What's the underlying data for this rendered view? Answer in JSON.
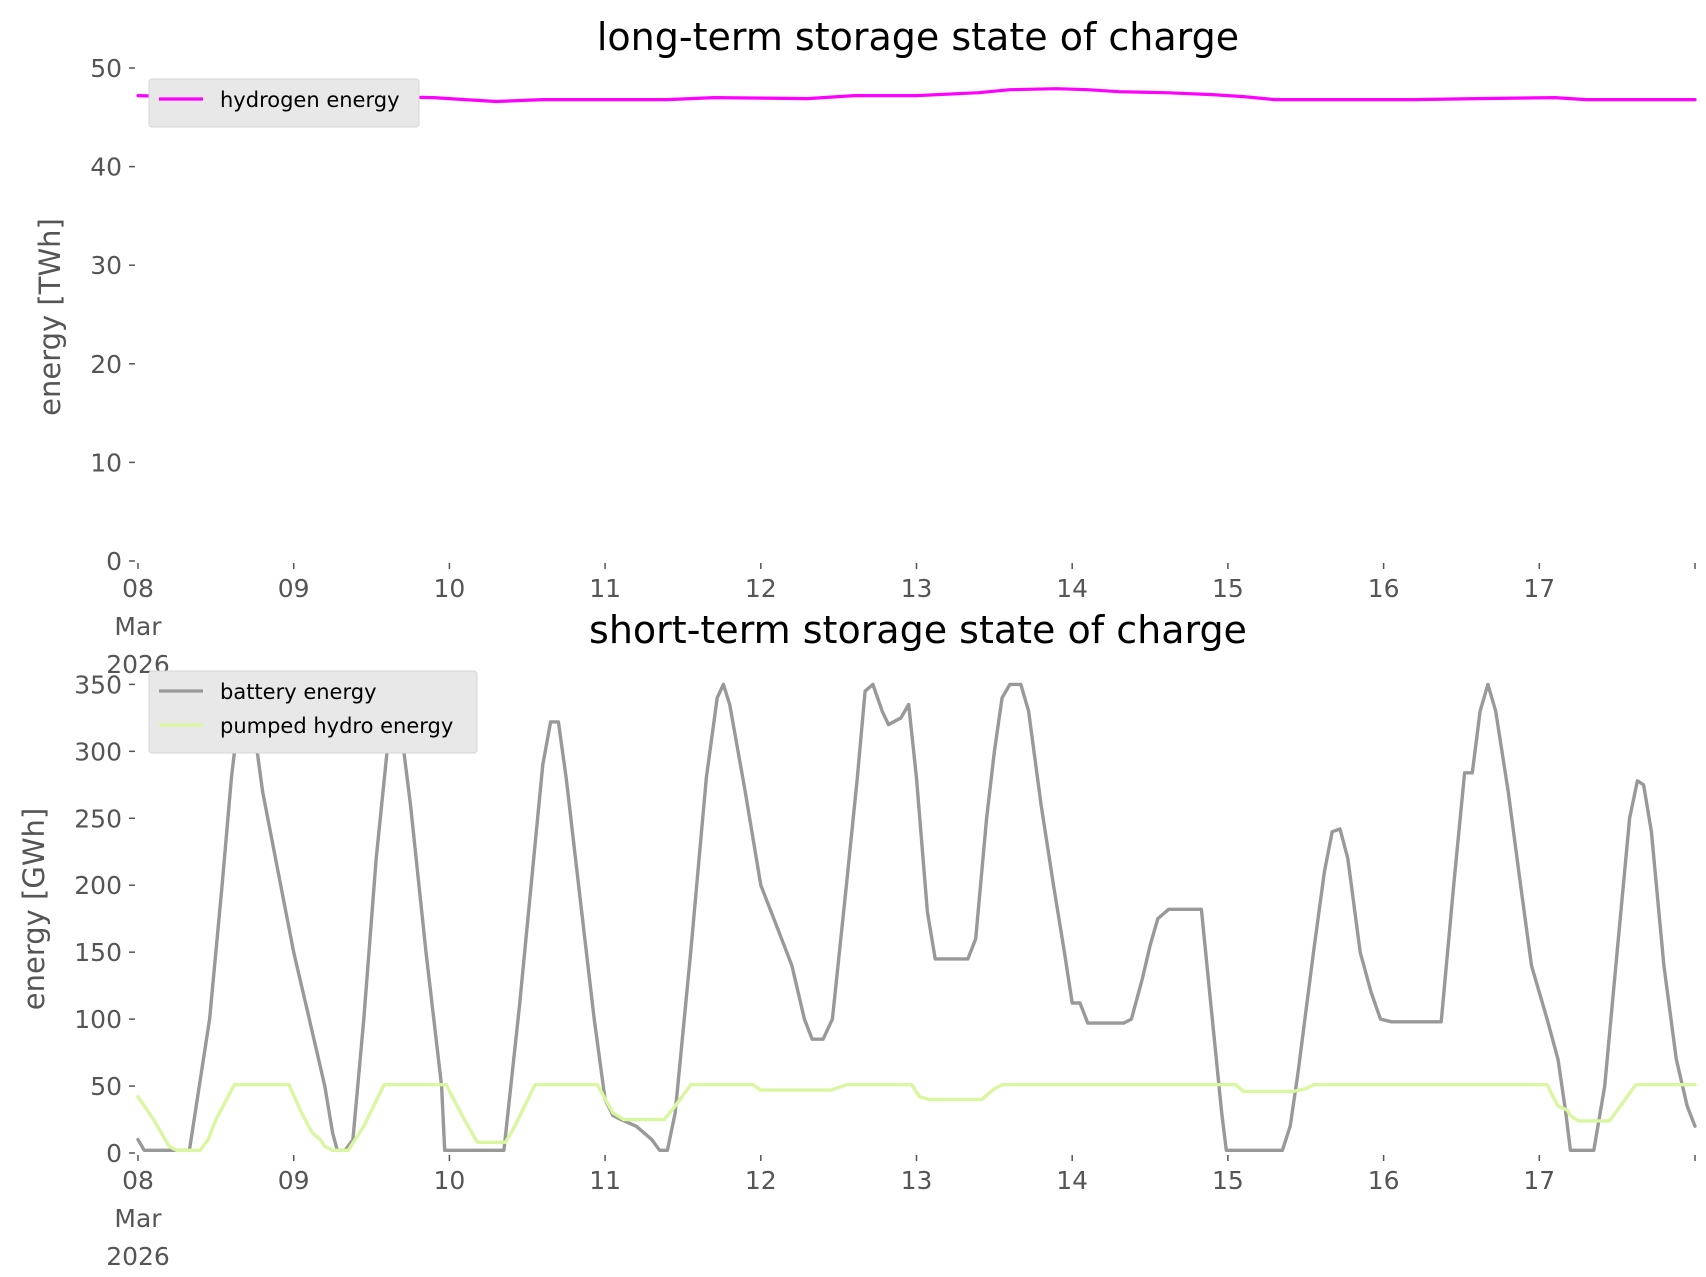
{
  "chart_data": [
    {
      "type": "line",
      "title": "long-term storage state of charge",
      "xlabel": "",
      "ylabel": "energy [TWh]",
      "x_unit": "days (8 Mar 2026 00:00 = day 0)",
      "xlim": [
        0,
        10
      ],
      "ylim": [
        0,
        50
      ],
      "yticks": [
        0,
        10,
        20,
        30,
        40,
        50
      ],
      "xticks": [
        {
          "x": 0,
          "lines": [
            "08",
            "Mar",
            "2026"
          ]
        },
        {
          "x": 1,
          "lines": [
            "09"
          ]
        },
        {
          "x": 2,
          "lines": [
            "10"
          ]
        },
        {
          "x": 3,
          "lines": [
            "11"
          ]
        },
        {
          "x": 4,
          "lines": [
            "12"
          ]
        },
        {
          "x": 5,
          "lines": [
            "13"
          ]
        },
        {
          "x": 6,
          "lines": [
            "14"
          ]
        },
        {
          "x": 7,
          "lines": [
            "15"
          ]
        },
        {
          "x": 8,
          "lines": [
            "16"
          ]
        },
        {
          "x": 9,
          "lines": [
            "17"
          ]
        }
      ],
      "grid": false,
      "legend": "upper-left",
      "series": [
        {
          "name": "hydrogen energy",
          "color": "#ff00ff",
          "points": [
            [
              0.0,
              47.2
            ],
            [
              0.5,
              47.0
            ],
            [
              1.0,
              47.0
            ],
            [
              1.5,
              47.1
            ],
            [
              1.9,
              47.0
            ],
            [
              2.1,
              46.8
            ],
            [
              2.3,
              46.6
            ],
            [
              2.6,
              46.8
            ],
            [
              3.0,
              46.8
            ],
            [
              3.4,
              46.8
            ],
            [
              3.7,
              47.0
            ],
            [
              4.3,
              46.9
            ],
            [
              4.6,
              47.2
            ],
            [
              5.0,
              47.2
            ],
            [
              5.4,
              47.5
            ],
            [
              5.6,
              47.8
            ],
            [
              5.9,
              47.9
            ],
            [
              6.1,
              47.8
            ],
            [
              6.3,
              47.6
            ],
            [
              6.6,
              47.5
            ],
            [
              6.9,
              47.3
            ],
            [
              7.1,
              47.1
            ],
            [
              7.3,
              46.8
            ],
            [
              7.7,
              46.8
            ],
            [
              8.2,
              46.8
            ],
            [
              8.6,
              46.9
            ],
            [
              9.1,
              47.0
            ],
            [
              9.3,
              46.8
            ],
            [
              10.0,
              46.8
            ]
          ]
        }
      ]
    },
    {
      "type": "line",
      "title": "short-term storage state of charge",
      "xlabel": "",
      "ylabel": "energy [GWh]",
      "x_unit": "days (8 Mar 2026 00:00 = day 0)",
      "xlim": [
        0,
        10
      ],
      "ylim": [
        0,
        360
      ],
      "yticks": [
        0,
        50,
        100,
        150,
        200,
        250,
        300,
        350
      ],
      "xticks": [
        {
          "x": 0,
          "lines": [
            "08",
            "Mar",
            "2026"
          ]
        },
        {
          "x": 1,
          "lines": [
            "09"
          ]
        },
        {
          "x": 2,
          "lines": [
            "10"
          ]
        },
        {
          "x": 3,
          "lines": [
            "11"
          ]
        },
        {
          "x": 4,
          "lines": [
            "12"
          ]
        },
        {
          "x": 5,
          "lines": [
            "13"
          ]
        },
        {
          "x": 6,
          "lines": [
            "14"
          ]
        },
        {
          "x": 7,
          "lines": [
            "15"
          ]
        },
        {
          "x": 8,
          "lines": [
            "16"
          ]
        },
        {
          "x": 9,
          "lines": [
            "17"
          ]
        }
      ],
      "grid": false,
      "legend": "upper-left",
      "series": [
        {
          "name": "battery energy",
          "color": "#999999",
          "points": [
            [
              0.0,
              10
            ],
            [
              0.04,
              2
            ],
            [
              0.33,
              2
            ],
            [
              0.46,
              100
            ],
            [
              0.54,
              200
            ],
            [
              0.6,
              280
            ],
            [
              0.65,
              330
            ],
            [
              0.69,
              345
            ],
            [
              0.73,
              330
            ],
            [
              0.8,
              270
            ],
            [
              0.9,
              210
            ],
            [
              1.0,
              150
            ],
            [
              1.08,
              110
            ],
            [
              1.14,
              80
            ],
            [
              1.2,
              50
            ],
            [
              1.25,
              15
            ],
            [
              1.28,
              2
            ],
            [
              1.33,
              2
            ],
            [
              1.38,
              10
            ],
            [
              1.45,
              100
            ],
            [
              1.53,
              220
            ],
            [
              1.6,
              300
            ],
            [
              1.63,
              335
            ],
            [
              1.67,
              335
            ],
            [
              1.75,
              260
            ],
            [
              1.85,
              150
            ],
            [
              1.95,
              50
            ],
            [
              1.97,
              2
            ],
            [
              2.35,
              2
            ],
            [
              2.45,
              110
            ],
            [
              2.55,
              230
            ],
            [
              2.6,
              290
            ],
            [
              2.65,
              322
            ],
            [
              2.7,
              322
            ],
            [
              2.75,
              280
            ],
            [
              2.85,
              180
            ],
            [
              2.93,
              100
            ],
            [
              3.0,
              40
            ],
            [
              3.05,
              28
            ],
            [
              3.1,
              25
            ],
            [
              3.2,
              20
            ],
            [
              3.3,
              10
            ],
            [
              3.35,
              2
            ],
            [
              3.4,
              2
            ],
            [
              3.45,
              30
            ],
            [
              3.55,
              150
            ],
            [
              3.65,
              280
            ],
            [
              3.72,
              340
            ],
            [
              3.76,
              350
            ],
            [
              3.8,
              335
            ],
            [
              3.9,
              270
            ],
            [
              4.0,
              200
            ],
            [
              4.1,
              170
            ],
            [
              4.2,
              140
            ],
            [
              4.28,
              100
            ],
            [
              4.33,
              85
            ],
            [
              4.4,
              85
            ],
            [
              4.46,
              100
            ],
            [
              4.55,
              200
            ],
            [
              4.62,
              280
            ],
            [
              4.67,
              345
            ],
            [
              4.72,
              350
            ],
            [
              4.78,
              330
            ],
            [
              4.82,
              320
            ],
            [
              4.9,
              325
            ],
            [
              4.95,
              335
            ],
            [
              5.0,
              280
            ],
            [
              5.07,
              180
            ],
            [
              5.12,
              145
            ],
            [
              5.33,
              145
            ],
            [
              5.38,
              160
            ],
            [
              5.45,
              250
            ],
            [
              5.5,
              300
            ],
            [
              5.55,
              340
            ],
            [
              5.6,
              350
            ],
            [
              5.67,
              350
            ],
            [
              5.72,
              330
            ],
            [
              5.8,
              260
            ],
            [
              5.88,
              200
            ],
            [
              5.95,
              150
            ],
            [
              6.0,
              112
            ],
            [
              6.05,
              112
            ],
            [
              6.1,
              97
            ],
            [
              6.33,
              97
            ],
            [
              6.38,
              100
            ],
            [
              6.45,
              130
            ],
            [
              6.5,
              155
            ],
            [
              6.55,
              175
            ],
            [
              6.62,
              182
            ],
            [
              6.83,
              182
            ],
            [
              6.9,
              100
            ],
            [
              6.96,
              30
            ],
            [
              6.99,
              2
            ],
            [
              7.35,
              2
            ],
            [
              7.4,
              20
            ],
            [
              7.45,
              60
            ],
            [
              7.55,
              150
            ],
            [
              7.62,
              210
            ],
            [
              7.67,
              240
            ],
            [
              7.72,
              242
            ],
            [
              7.77,
              220
            ],
            [
              7.85,
              150
            ],
            [
              7.92,
              120
            ],
            [
              7.98,
              100
            ],
            [
              8.05,
              98
            ],
            [
              8.37,
              98
            ],
            [
              8.45,
              200
            ],
            [
              8.52,
              284
            ],
            [
              8.57,
              284
            ],
            [
              8.62,
              330
            ],
            [
              8.67,
              350
            ],
            [
              8.72,
              330
            ],
            [
              8.8,
              270
            ],
            [
              8.88,
              200
            ],
            [
              8.95,
              140
            ],
            [
              9.05,
              100
            ],
            [
              9.12,
              70
            ],
            [
              9.17,
              30
            ],
            [
              9.2,
              2
            ],
            [
              9.35,
              2
            ],
            [
              9.42,
              50
            ],
            [
              9.5,
              150
            ],
            [
              9.58,
              250
            ],
            [
              9.63,
              278
            ],
            [
              9.67,
              275
            ],
            [
              9.72,
              240
            ],
            [
              9.8,
              140
            ],
            [
              9.88,
              70
            ],
            [
              9.95,
              35
            ],
            [
              10.0,
              20
            ]
          ]
        },
        {
          "name": "pumped hydro energy",
          "color": "#d8f7a0",
          "points": [
            [
              0.0,
              42
            ],
            [
              0.1,
              25
            ],
            [
              0.2,
              5
            ],
            [
              0.25,
              2
            ],
            [
              0.4,
              2
            ],
            [
              0.45,
              10
            ],
            [
              0.5,
              25
            ],
            [
              0.62,
              51
            ],
            [
              0.97,
              51
            ],
            [
              1.05,
              30
            ],
            [
              1.12,
              15
            ],
            [
              1.17,
              10
            ],
            [
              1.2,
              5
            ],
            [
              1.25,
              2
            ],
            [
              1.35,
              2
            ],
            [
              1.45,
              20
            ],
            [
              1.58,
              51
            ],
            [
              1.98,
              51
            ],
            [
              2.05,
              35
            ],
            [
              2.12,
              20
            ],
            [
              2.18,
              8
            ],
            [
              2.36,
              8
            ],
            [
              2.42,
              20
            ],
            [
              2.55,
              51
            ],
            [
              2.95,
              51
            ],
            [
              3.05,
              30
            ],
            [
              3.12,
              25
            ],
            [
              3.38,
              25
            ],
            [
              3.45,
              35
            ],
            [
              3.55,
              51
            ],
            [
              3.95,
              51
            ],
            [
              4.0,
              47
            ],
            [
              4.45,
              47
            ],
            [
              4.55,
              51
            ],
            [
              4.97,
              51
            ],
            [
              5.02,
              42
            ],
            [
              5.08,
              40
            ],
            [
              5.42,
              40
            ],
            [
              5.5,
              48
            ],
            [
              5.55,
              51
            ],
            [
              6.95,
              51
            ],
            [
              7.05,
              51
            ],
            [
              7.1,
              46
            ],
            [
              7.42,
              46
            ],
            [
              7.5,
              48
            ],
            [
              7.55,
              51
            ],
            [
              8.95,
              51
            ],
            [
              9.05,
              51
            ],
            [
              9.12,
              35
            ],
            [
              9.18,
              32
            ],
            [
              9.2,
              28
            ],
            [
              9.25,
              24
            ],
            [
              9.45,
              24
            ],
            [
              9.52,
              35
            ],
            [
              9.62,
              51
            ],
            [
              10.0,
              51
            ]
          ]
        }
      ]
    }
  ]
}
